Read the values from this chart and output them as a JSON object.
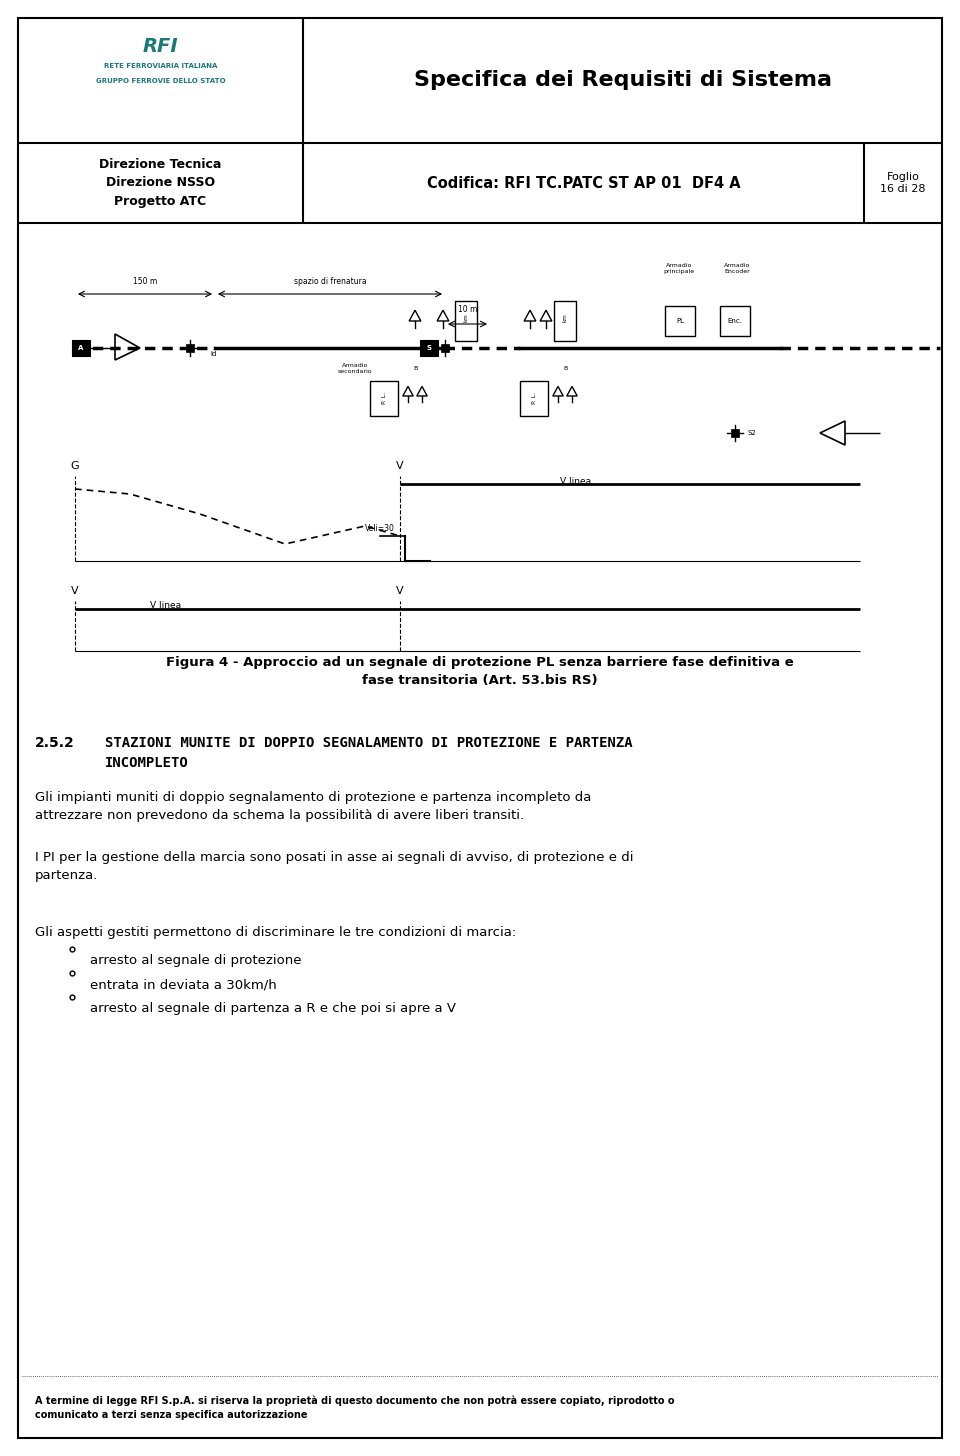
{
  "page_width": 9.6,
  "page_height": 14.56,
  "bg_color": "#ffffff",
  "header": {
    "title": "Specifica dei Requisiti di Sistema",
    "row2_left": "Direzione Tecnica\nDirezione NSSO\nProgetto ATC",
    "row2_center": "Codifica: RFI TC.PATC ST AP 01  DF4 A",
    "row2_right": "Foglio\n16 di 28"
  },
  "figure_caption": "Figura 4 - Approccio ad un segnale di protezione PL senza barriere fase definitiva e\nfase transitoria (Art. 53.bis RS)",
  "section_number": "2.5.2",
  "section_title_line1": "STAZIONI MUNITE DI DOPPIO SEGNALAMENTO DI PROTEZIONE E PARTENZA",
  "section_title_line2": "INCOMPLETO",
  "paragraph1": "Gli impianti muniti di doppio segnalamento di protezione e partenza incompleto da\nattrezzare non prevedono da schema la possibilità di avere liberi transiti.",
  "paragraph2": "I PI per la gestione della marcia sono posati in asse ai segnali di avviso, di protezione e di\npartenza.",
  "paragraph3_intro": "Gli aspetti gestiti permettono di discriminare le tre condizioni di marcia:",
  "bullets": [
    "arresto al segnale di protezione",
    "entrata in deviata a 30km/h",
    "arresto al segnale di partenza a R e che poi si apre a V"
  ],
  "footer_text": "A termine di legge RFI S.p.A. si riserva la proprietà di questo documento che non potrà essere copiato, riprodotto o\ncomunicato a terzi senza specifica autorizzazione"
}
